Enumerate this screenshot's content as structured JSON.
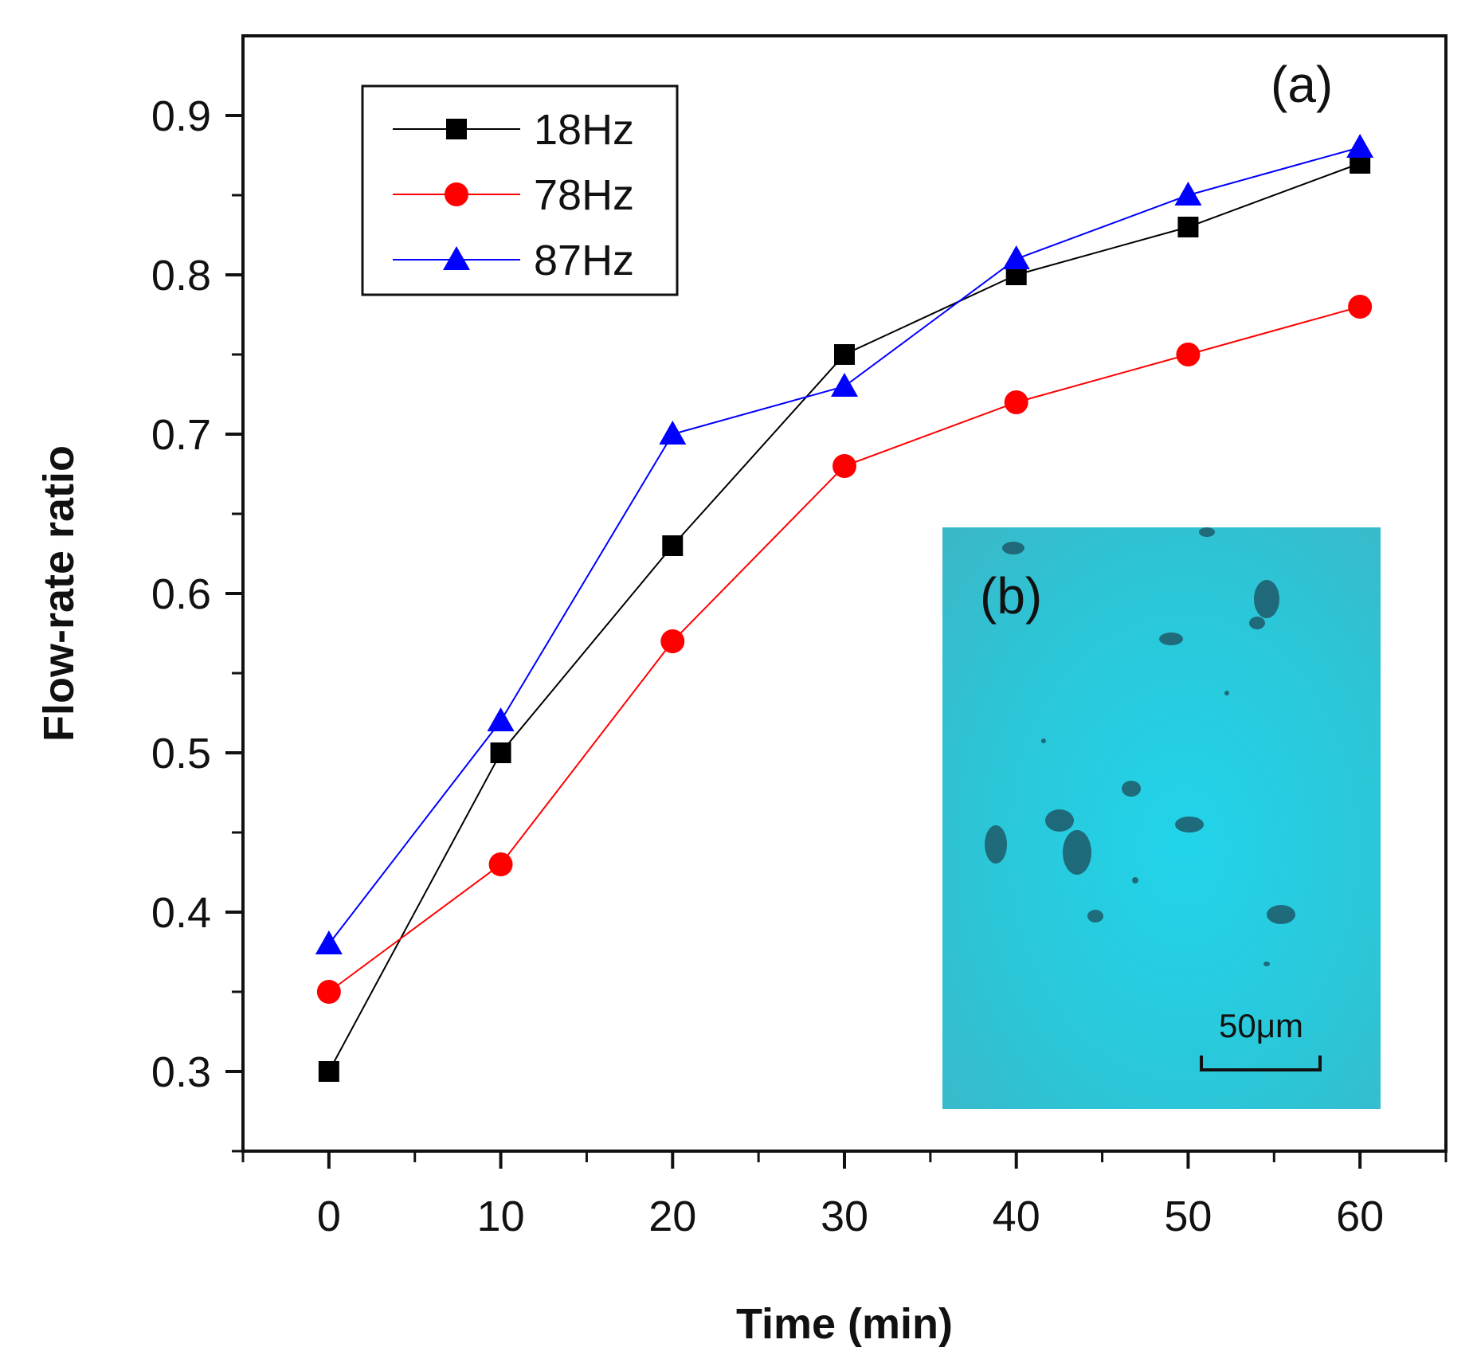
{
  "chart_data": {
    "type": "line",
    "title": "",
    "xlabel": "Time (min)",
    "ylabel": "Flow-rate ratio",
    "x": [
      0,
      10,
      20,
      30,
      40,
      50,
      60
    ],
    "xlim": [
      -5,
      65
    ],
    "ylim": [
      0.25,
      0.95
    ],
    "xticks": [
      0,
      10,
      20,
      30,
      40,
      50,
      60
    ],
    "yticks": [
      0.3,
      0.4,
      0.5,
      0.6,
      0.7,
      0.8,
      0.9
    ],
    "xtick_labels": [
      "0",
      "10",
      "20",
      "30",
      "40",
      "50",
      "60"
    ],
    "ytick_labels": [
      "0.3",
      "0.4",
      "0.5",
      "0.6",
      "0.7",
      "0.8",
      "0.9"
    ],
    "grid": false,
    "legend_position": "top-left",
    "series": [
      {
        "name": "18Hz",
        "color": "#000000",
        "marker": "square",
        "values": [
          0.3,
          0.5,
          0.63,
          0.75,
          0.8,
          0.83,
          0.87
        ]
      },
      {
        "name": "78Hz",
        "color": "#ff0000",
        "marker": "circle",
        "values": [
          0.35,
          0.43,
          0.57,
          0.68,
          0.72,
          0.75,
          0.78
        ]
      },
      {
        "name": "87Hz",
        "color": "#0000ff",
        "marker": "triangle",
        "values": [
          0.38,
          0.52,
          0.7,
          0.73,
          0.81,
          0.85,
          0.88
        ]
      }
    ],
    "annotations": {
      "panel_a": "(a)",
      "panel_b": "(b)",
      "scale_bar": "50μm"
    }
  },
  "inset": {
    "description_color": "#2cc3d4"
  }
}
